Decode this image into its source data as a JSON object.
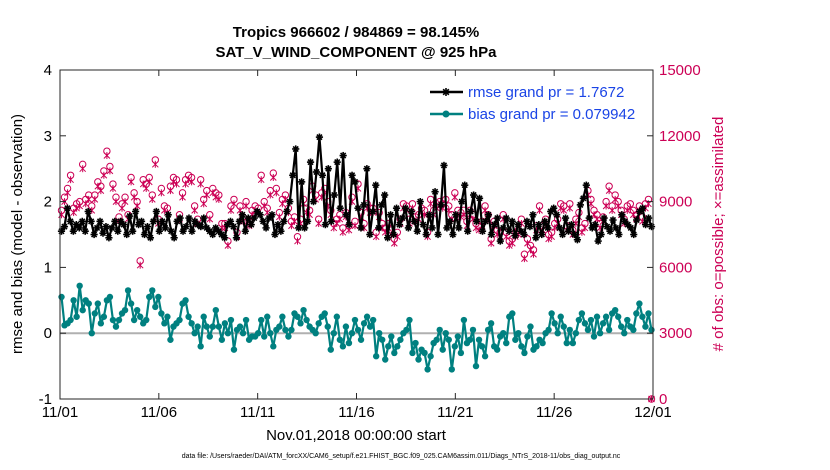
{
  "chart_data": {
    "type": "line",
    "title": "Tropics 966602 / 984869 = 98.145%",
    "subtitle": "SAT_V_WIND_COMPONENT @ 925 hPa",
    "xlabel": "Nov.01,2018 00:00:00 start",
    "ylabel": "rmse and bias (model - observation)",
    "ylabel_right": "# of obs: o=possible; ×=assimilated",
    "x_ticks": [
      "11/01",
      "11/06",
      "11/11",
      "11/16",
      "11/21",
      "11/26",
      "12/01"
    ],
    "ylim": [
      -1,
      4
    ],
    "y_ticks": [
      "-1",
      "0",
      "1",
      "2",
      "3",
      "4"
    ],
    "ylim_right": [
      0,
      15000
    ],
    "y_ticks_right": [
      "0",
      "3000",
      "6000",
      "9000",
      "12000",
      "15000"
    ],
    "xlim_days": [
      0,
      30
    ],
    "footnote": "data file: /Users/raeder/DAI/ATM_forcXX/CAM6_setup/f.e21.FHIST_BGC.f09_025.CAM6assim.011/Diags_NTrS_2018-11/obs_diag_output.nc",
    "colors": {
      "rmse": "#000000",
      "bias": "#008080",
      "obs": "#cc0055",
      "legend_text": "#1a44e6"
    },
    "series": [
      {
        "name": "rmse grand pr = 1.7672",
        "axis": "left",
        "values": [
          1.55,
          1.62,
          1.9,
          1.7,
          1.55,
          1.65,
          1.6,
          1.7,
          1.55,
          1.85,
          1.7,
          1.5,
          1.6,
          1.7,
          1.52,
          1.62,
          1.45,
          1.6,
          1.7,
          1.55,
          1.7,
          1.65,
          1.5,
          1.78,
          1.55,
          1.85,
          1.65,
          1.7,
          1.5,
          1.62,
          1.45,
          1.7,
          1.85,
          1.55,
          1.7,
          1.6,
          1.8,
          1.55,
          1.45,
          1.7,
          1.75,
          1.55,
          1.62,
          1.75,
          1.55,
          1.7,
          1.65,
          1.62,
          1.75,
          1.6,
          1.55,
          1.5,
          1.6,
          1.55,
          1.5,
          1.45,
          1.65,
          1.7,
          1.62,
          1.45,
          1.7,
          1.8,
          1.55,
          1.75,
          1.65,
          1.75,
          1.85,
          1.8,
          1.7,
          1.6,
          1.75,
          1.8,
          1.5,
          1.65,
          1.55,
          1.7,
          1.85,
          2.0,
          2.4,
          2.8,
          1.6,
          2.3,
          1.6,
          1.7,
          2.6,
          2.0,
          2.45,
          2.98,
          2.4,
          1.65,
          2.5,
          1.7,
          2.1,
          2.6,
          1.9,
          2.7,
          1.8,
          1.65,
          2.4,
          2.3,
          1.9,
          1.6,
          1.95,
          2.5,
          1.5,
          1.85,
          2.25,
          1.6,
          1.95,
          2.1,
          1.45,
          1.8,
          1.5,
          1.9,
          1.65,
          1.75,
          1.9,
          1.6,
          1.85,
          1.7,
          1.55,
          2.0,
          1.65,
          1.5,
          1.8,
          1.6,
          2.15,
          1.5,
          1.95,
          2.55,
          1.6,
          1.7,
          1.5,
          1.8,
          1.6,
          2.0,
          2.25,
          1.55,
          1.85,
          2.1,
          1.7,
          2.05,
          1.55,
          1.7,
          1.8,
          1.5,
          1.65,
          1.75,
          1.4,
          1.6,
          1.75,
          1.55,
          1.7,
          1.48,
          1.65,
          1.55,
          1.5,
          1.7,
          1.62,
          1.8,
          1.45,
          1.65,
          1.5,
          1.7,
          1.6,
          1.85,
          1.9,
          1.8,
          1.6,
          1.5,
          1.75,
          1.55,
          1.65,
          1.5,
          1.42,
          1.95,
          2.05,
          2.25,
          1.75,
          1.6,
          1.65,
          1.4,
          1.5,
          1.75,
          1.62,
          1.55,
          1.72,
          1.6,
          1.5,
          1.8,
          1.7,
          1.65,
          1.6,
          1.5,
          1.72,
          1.85,
          1.9,
          1.65,
          1.75,
          1.62
        ]
      },
      {
        "name": "bias grand pr = 0.079942",
        "axis": "left",
        "values": [
          0.55,
          0.12,
          0.15,
          0.2,
          0.5,
          0.25,
          0.72,
          0.35,
          0.5,
          0.45,
          0.0,
          0.3,
          0.45,
          0.15,
          0.25,
          0.5,
          0.55,
          0.2,
          0.1,
          0.2,
          0.3,
          0.35,
          0.65,
          0.45,
          0.2,
          0.35,
          0.25,
          0.15,
          0.2,
          0.55,
          0.65,
          0.4,
          0.55,
          0.3,
          0.15,
          0.25,
          -0.1,
          0.1,
          0.15,
          0.2,
          0.45,
          0.5,
          0.25,
          0.15,
          0.0,
          0.1,
          -0.2,
          0.25,
          0.1,
          -0.05,
          0.1,
          0.35,
          0.1,
          -0.1,
          0.15,
          0.0,
          0.2,
          -0.25,
          0.05,
          0.1,
          0.0,
          0.2,
          -0.1,
          -0.05,
          -0.05,
          0.0,
          0.2,
          -0.05,
          0.25,
          0.0,
          -0.2,
          0.05,
          0.1,
          0.25,
          0.05,
          -0.05,
          0.05,
          0.3,
          0.25,
          0.15,
          0.35,
          0.2,
          0.1,
          0.05,
          0.0,
          0.15,
          0.25,
          0.3,
          0.1,
          -0.25,
          0.0,
          0.25,
          -0.1,
          -0.2,
          0.1,
          -0.15,
          0.0,
          0.2,
          0.05,
          -0.1,
          0.15,
          0.25,
          0.1,
          0.2,
          -0.35,
          0.0,
          -0.1,
          -0.4,
          -0.2,
          -0.05,
          -0.3,
          -0.2,
          -0.1,
          0.0,
          0.05,
          0.2,
          -0.3,
          -0.15,
          -0.4,
          -0.25,
          -0.3,
          -0.55,
          -0.35,
          -0.15,
          -0.1,
          0.05,
          -0.25,
          0.0,
          -0.1,
          -0.55,
          -0.2,
          -0.05,
          -0.3,
          0.2,
          -0.15,
          -0.1,
          0.05,
          -0.5,
          -0.1,
          -0.2,
          -0.35,
          0.05,
          0.15,
          -0.2,
          -0.25,
          -0.05,
          0.0,
          -0.15,
          0.25,
          0.3,
          -0.1,
          0.0,
          -0.2,
          -0.3,
          -0.05,
          0.1,
          -0.25,
          -0.2,
          -0.1,
          -0.15,
          0.0,
          0.05,
          0.3,
          0.15,
          0.0,
          0.25,
          0.1,
          -0.15,
          0.05,
          -0.15,
          0.0,
          0.2,
          0.3,
          0.15,
          0.05,
          0.2,
          -0.05,
          0.25,
          0.0,
          0.15,
          0.25,
          0.05,
          0.3,
          0.35,
          0.25,
          0.1,
          0.0,
          0.2,
          0.1,
          0.05,
          0.3,
          0.45,
          0.25,
          0.1,
          0.3,
          0.05
        ]
      },
      {
        "name": "possible observations",
        "axis": "right",
        "marker": "o",
        "values": [
          8600,
          9200,
          9600,
          10200,
          8700,
          8900,
          9000,
          10700,
          9100,
          9300,
          8800,
          9300,
          9900,
          9700,
          10400,
          11300,
          10600,
          9800,
          9200,
          8300,
          8900,
          9200,
          8400,
          10100,
          9400,
          9000,
          6300,
          10000,
          9800,
          10100,
          9300,
          10900,
          8200,
          9600,
          8800,
          8700,
          9700,
          10100,
          10000,
          8400,
          9400,
          10000,
          10200,
          10100,
          8800,
          8200,
          10000,
          9100,
          9500,
          8400,
          9600,
          9400,
          9300,
          8000,
          8000,
          7200,
          8800,
          9100,
          7600,
          8800,
          8300,
          9000,
          8100,
          8600,
          8800,
          8700,
          10200,
          9000,
          8700,
          9500,
          10300,
          9600,
          8500,
          9100,
          9300,
          8700,
          8100,
          8300,
          7400,
          8200,
          9100,
          8700,
          8600,
          9700,
          9300,
          8200,
          9400,
          9600,
          9000,
          8600,
          8000,
          8200,
          8400,
          7800,
          8500,
          7900,
          9200,
          8100,
          9800,
          8500,
          8000,
          8900,
          8700,
          8700,
          7600,
          8500,
          8000,
          7800,
          8000,
          7700,
          7300,
          7600,
          8200,
          8900,
          8800,
          8200,
          8900,
          8300,
          8400,
          8700,
          8600,
          7600,
          9100,
          8600,
          8900,
          9000,
          8900,
          9100,
          8800,
          8400,
          9400,
          8600,
          8500,
          8600,
          8100,
          8600,
          8400,
          8000,
          7900,
          8100,
          8800,
          8400,
          7300,
          8100,
          7700,
          7600,
          8400,
          7600,
          7200,
          7300,
          7600,
          7700,
          8200,
          6600,
          7300,
          7000,
          6800,
          7900,
          8800,
          7900,
          8200,
          7500,
          7600,
          8000,
          8200,
          8900,
          8800,
          7900,
          8900,
          7700,
          8200,
          8500,
          7800,
          8000,
          9500,
          9100,
          8600,
          8400,
          8000,
          8300,
          9000,
          9700,
          8800,
          9300,
          9000,
          8600,
          8200,
          8800,
          8900,
          8600,
          8400,
          8800,
          8300,
          8900,
          9100,
          0
        ]
      },
      {
        "name": "assimilated observations",
        "axis": "right",
        "marker": "x",
        "values": [
          8400,
          9000,
          9400,
          10000,
          8500,
          8700,
          8800,
          10500,
          8900,
          9100,
          8600,
          9100,
          9700,
          9500,
          10200,
          11100,
          10400,
          9600,
          9000,
          8100,
          8700,
          9000,
          8200,
          9900,
          9200,
          8800,
          6100,
          9800,
          9600,
          9900,
          9100,
          10700,
          8000,
          9400,
          8600,
          8500,
          9500,
          9900,
          9800,
          8200,
          9200,
          9800,
          10000,
          9900,
          8600,
          8000,
          9800,
          8900,
          9300,
          8200,
          9400,
          9200,
          9100,
          7800,
          7800,
          7000,
          8600,
          8900,
          7400,
          8600,
          8100,
          8800,
          7900,
          8400,
          8600,
          8500,
          10000,
          8800,
          8500,
          9300,
          10100,
          9400,
          8300,
          8900,
          9100,
          8500,
          7900,
          8100,
          7200,
          8000,
          8900,
          8500,
          8400,
          9500,
          9100,
          8000,
          9200,
          9400,
          8800,
          8400,
          7800,
          8000,
          8200,
          7600,
          8300,
          7700,
          9000,
          7900,
          9600,
          8300,
          7800,
          8700,
          8500,
          8500,
          7400,
          8300,
          7800,
          7600,
          7800,
          7500,
          7100,
          7400,
          8000,
          8700,
          8600,
          8000,
          8700,
          8100,
          8200,
          8500,
          8400,
          7400,
          8900,
          8400,
          8700,
          8800,
          8700,
          8900,
          8600,
          8200,
          9200,
          8400,
          8300,
          8400,
          7900,
          8400,
          8200,
          7800,
          7700,
          7900,
          8600,
          8200,
          7100,
          7900,
          7500,
          7400,
          8200,
          7400,
          7000,
          7100,
          7400,
          7500,
          8000,
          6400,
          7100,
          6800,
          6600,
          7700,
          8600,
          7700,
          8000,
          7300,
          7400,
          7800,
          8000,
          8700,
          8600,
          7700,
          8700,
          7500,
          8000,
          8300,
          7600,
          7800,
          9300,
          8900,
          8400,
          8200,
          7800,
          8100,
          8800,
          9500,
          8600,
          9100,
          8800,
          8400,
          8000,
          8600,
          8700,
          8400,
          8200,
          8600,
          8100,
          8700,
          8900,
          0
        ]
      }
    ],
    "legend": [
      "rmse grand pr = 1.7672",
      "bias grand pr = 0.079942"
    ],
    "legend_position": "top-right"
  }
}
